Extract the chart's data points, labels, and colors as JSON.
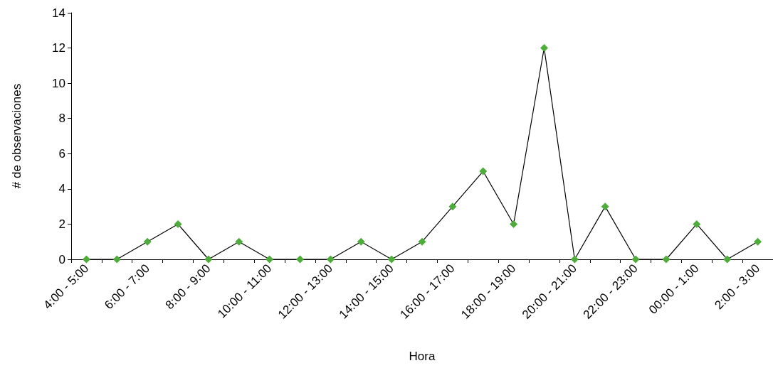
{
  "chart_data": {
    "type": "line",
    "xlabel": "Hora",
    "ylabel": "# de observaciones",
    "categories": [
      "4:00 - 5:00",
      null,
      "6:00 - 7:00",
      null,
      "8:00 - 9:00",
      null,
      "10:00 - 11:00",
      null,
      "12:00 - 13:00",
      null,
      "14:00 - 15:00",
      null,
      "16:00 - 17:00",
      null,
      "18:00 - 19:00",
      null,
      "20:00 - 21:00",
      null,
      "22:00 - 23:00",
      null,
      "00:00 - 1:00",
      null,
      "2:00 - 3:00"
    ],
    "series": [
      {
        "color": "#4ead3a",
        "values": [
          0,
          0,
          1,
          2,
          0,
          1,
          0,
          0,
          0,
          1,
          0,
          1,
          3,
          5,
          2,
          12,
          0,
          3,
          0,
          0,
          2,
          0,
          1
        ]
      }
    ],
    "ylim": [
      0,
      14
    ],
    "yticks": [
      0,
      2,
      4,
      6,
      8,
      10,
      12,
      14
    ],
    "grid": false,
    "marker": "diamond",
    "line_style": "solid"
  }
}
